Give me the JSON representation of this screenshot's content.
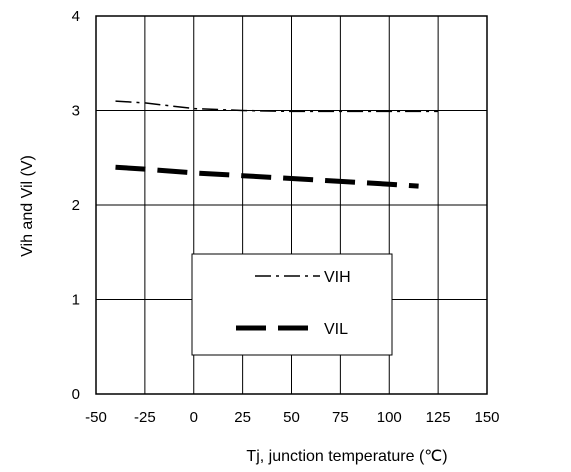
{
  "chart_data": {
    "type": "line",
    "title": "",
    "xlabel": "Tj, junction temperature (℃)",
    "ylabel": "Vih and Vil (V)",
    "xlim": [
      -50,
      150
    ],
    "ylim": [
      0,
      4
    ],
    "xticks": [
      "-50",
      "-25",
      "0",
      "25",
      "50",
      "75",
      "100",
      "125",
      "150"
    ],
    "yticks": [
      "0",
      "1",
      "2",
      "3",
      "4"
    ],
    "grid": true,
    "legend_position": "lower-center",
    "series": [
      {
        "name": "VIH",
        "line_style": "dash-dot",
        "x": [
          -40,
          -25,
          0,
          25,
          50,
          75,
          100,
          125
        ],
        "y": [
          3.1,
          3.08,
          3.02,
          3.0,
          2.99,
          2.99,
          2.99,
          2.99
        ]
      },
      {
        "name": "VIL",
        "line_style": "bold-dash",
        "x": [
          -40,
          -25,
          0,
          25,
          50,
          75,
          100,
          115
        ],
        "y": [
          2.4,
          2.38,
          2.34,
          2.31,
          2.28,
          2.25,
          2.22,
          2.2
        ]
      }
    ]
  }
}
